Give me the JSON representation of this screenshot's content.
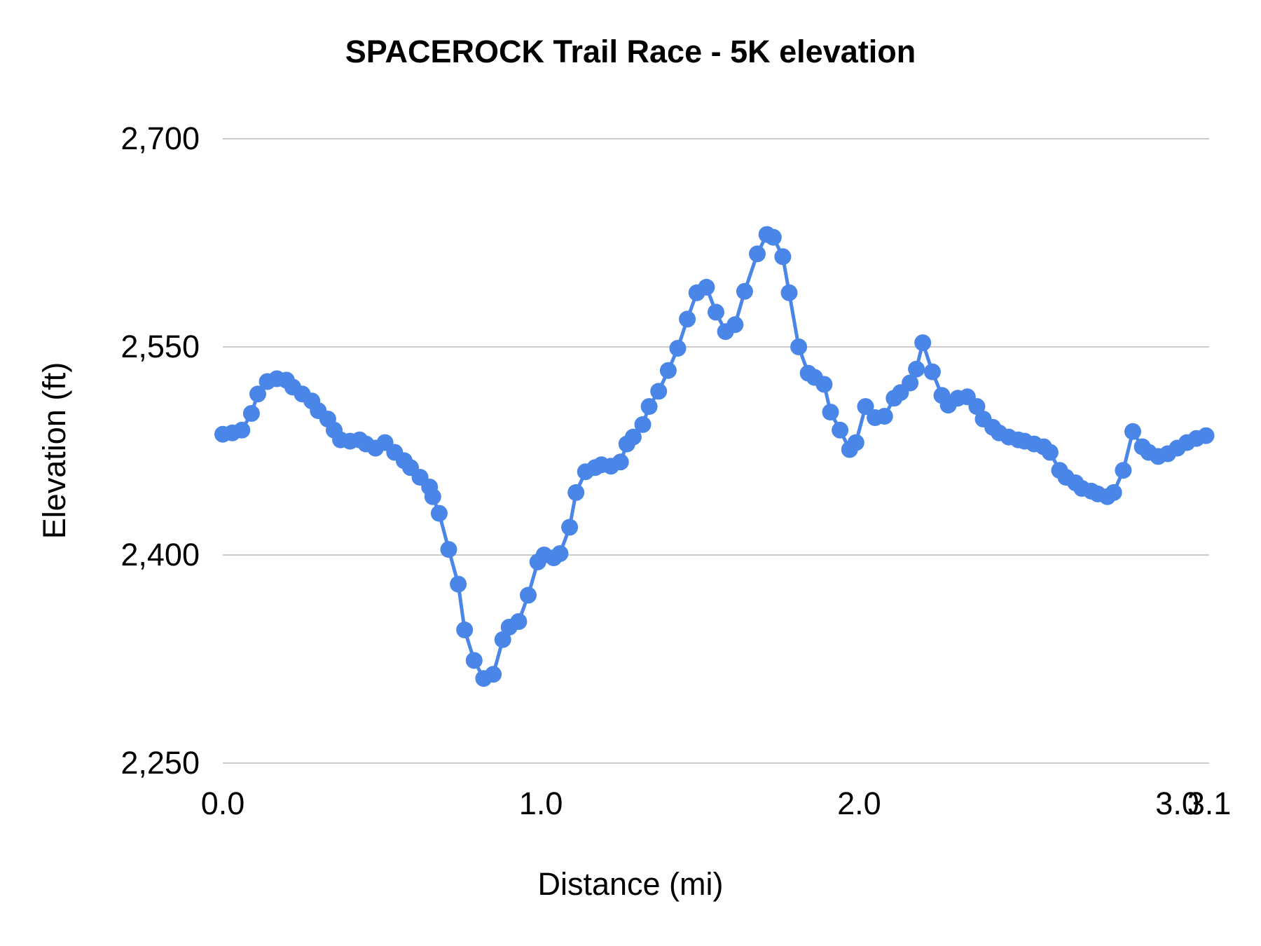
{
  "chart_data": {
    "type": "line",
    "title": "SPACEROCK Trail Race - 5K elevation",
    "xlabel": "Distance (mi)",
    "ylabel": "Elevation (ft)",
    "xlim": [
      0,
      3.1
    ],
    "ylim": [
      2250,
      2700
    ],
    "grid": "horizontal-only",
    "legend": "none",
    "marker": "filled-circle",
    "series_color": "#4a86e8",
    "gridline_color": "#cccccc",
    "x_ticks": [
      {
        "value": 0,
        "label": "0.0"
      },
      {
        "value": 1,
        "label": "1.0"
      },
      {
        "value": 2,
        "label": "2.0"
      },
      {
        "value": 3,
        "label": "3.0"
      },
      {
        "value": 3.1,
        "label": "3.1"
      }
    ],
    "y_ticks": [
      {
        "value": 2250,
        "label": "2,250"
      },
      {
        "value": 2400,
        "label": "2,400"
      },
      {
        "value": 2550,
        "label": "2,550"
      },
      {
        "value": 2700,
        "label": "2,700"
      }
    ],
    "series": [
      {
        "name": "Elevation",
        "x": [
          0.0,
          0.03,
          0.06,
          0.09,
          0.11,
          0.14,
          0.17,
          0.2,
          0.22,
          0.25,
          0.28,
          0.3,
          0.33,
          0.35,
          0.37,
          0.4,
          0.43,
          0.45,
          0.48,
          0.51,
          0.54,
          0.57,
          0.59,
          0.62,
          0.65,
          0.66,
          0.68,
          0.71,
          0.74,
          0.76,
          0.79,
          0.82,
          0.85,
          0.88,
          0.9,
          0.93,
          0.96,
          0.99,
          1.01,
          1.04,
          1.06,
          1.09,
          1.11,
          1.14,
          1.17,
          1.19,
          1.22,
          1.25,
          1.27,
          1.29,
          1.32,
          1.34,
          1.37,
          1.4,
          1.43,
          1.46,
          1.49,
          1.52,
          1.55,
          1.58,
          1.61,
          1.64,
          1.68,
          1.71,
          1.73,
          1.76,
          1.78,
          1.81,
          1.84,
          1.86,
          1.89,
          1.91,
          1.94,
          1.97,
          1.99,
          2.02,
          2.05,
          2.08,
          2.11,
          2.13,
          2.16,
          2.18,
          2.2,
          2.23,
          2.26,
          2.28,
          2.31,
          2.34,
          2.37,
          2.39,
          2.42,
          2.44,
          2.47,
          2.5,
          2.52,
          2.55,
          2.58,
          2.6,
          2.63,
          2.65,
          2.68,
          2.7,
          2.73,
          2.75,
          2.78,
          2.8,
          2.83,
          2.86,
          2.89,
          2.91,
          2.94,
          2.97,
          3.0,
          3.03,
          3.06,
          3.09
        ],
        "y": [
          2487,
          2488,
          2490,
          2502,
          2516,
          2525,
          2527,
          2526,
          2521,
          2516,
          2511,
          2504,
          2498,
          2490,
          2483,
          2482,
          2483,
          2480,
          2477,
          2481,
          2474,
          2468,
          2463,
          2456,
          2449,
          2442,
          2430,
          2404,
          2379,
          2346,
          2324,
          2311,
          2314,
          2339,
          2348,
          2352,
          2371,
          2395,
          2400,
          2398,
          2401,
          2420,
          2445,
          2460,
          2463,
          2465,
          2464,
          2467,
          2480,
          2485,
          2494,
          2507,
          2518,
          2533,
          2549,
          2570,
          2589,
          2593,
          2575,
          2561,
          2566,
          2590,
          2617,
          2631,
          2629,
          2615,
          2589,
          2550,
          2531,
          2528,
          2523,
          2503,
          2490,
          2476,
          2481,
          2507,
          2499,
          2500,
          2513,
          2517,
          2524,
          2534,
          2553,
          2532,
          2515,
          2508,
          2513,
          2514,
          2507,
          2498,
          2492,
          2488,
          2485,
          2483,
          2482,
          2480,
          2478,
          2474,
          2461,
          2456,
          2452,
          2448,
          2446,
          2444,
          2442,
          2445,
          2461,
          2489,
          2478,
          2474,
          2471,
          2473,
          2477,
          2481,
          2484,
          2486
        ]
      }
    ]
  }
}
